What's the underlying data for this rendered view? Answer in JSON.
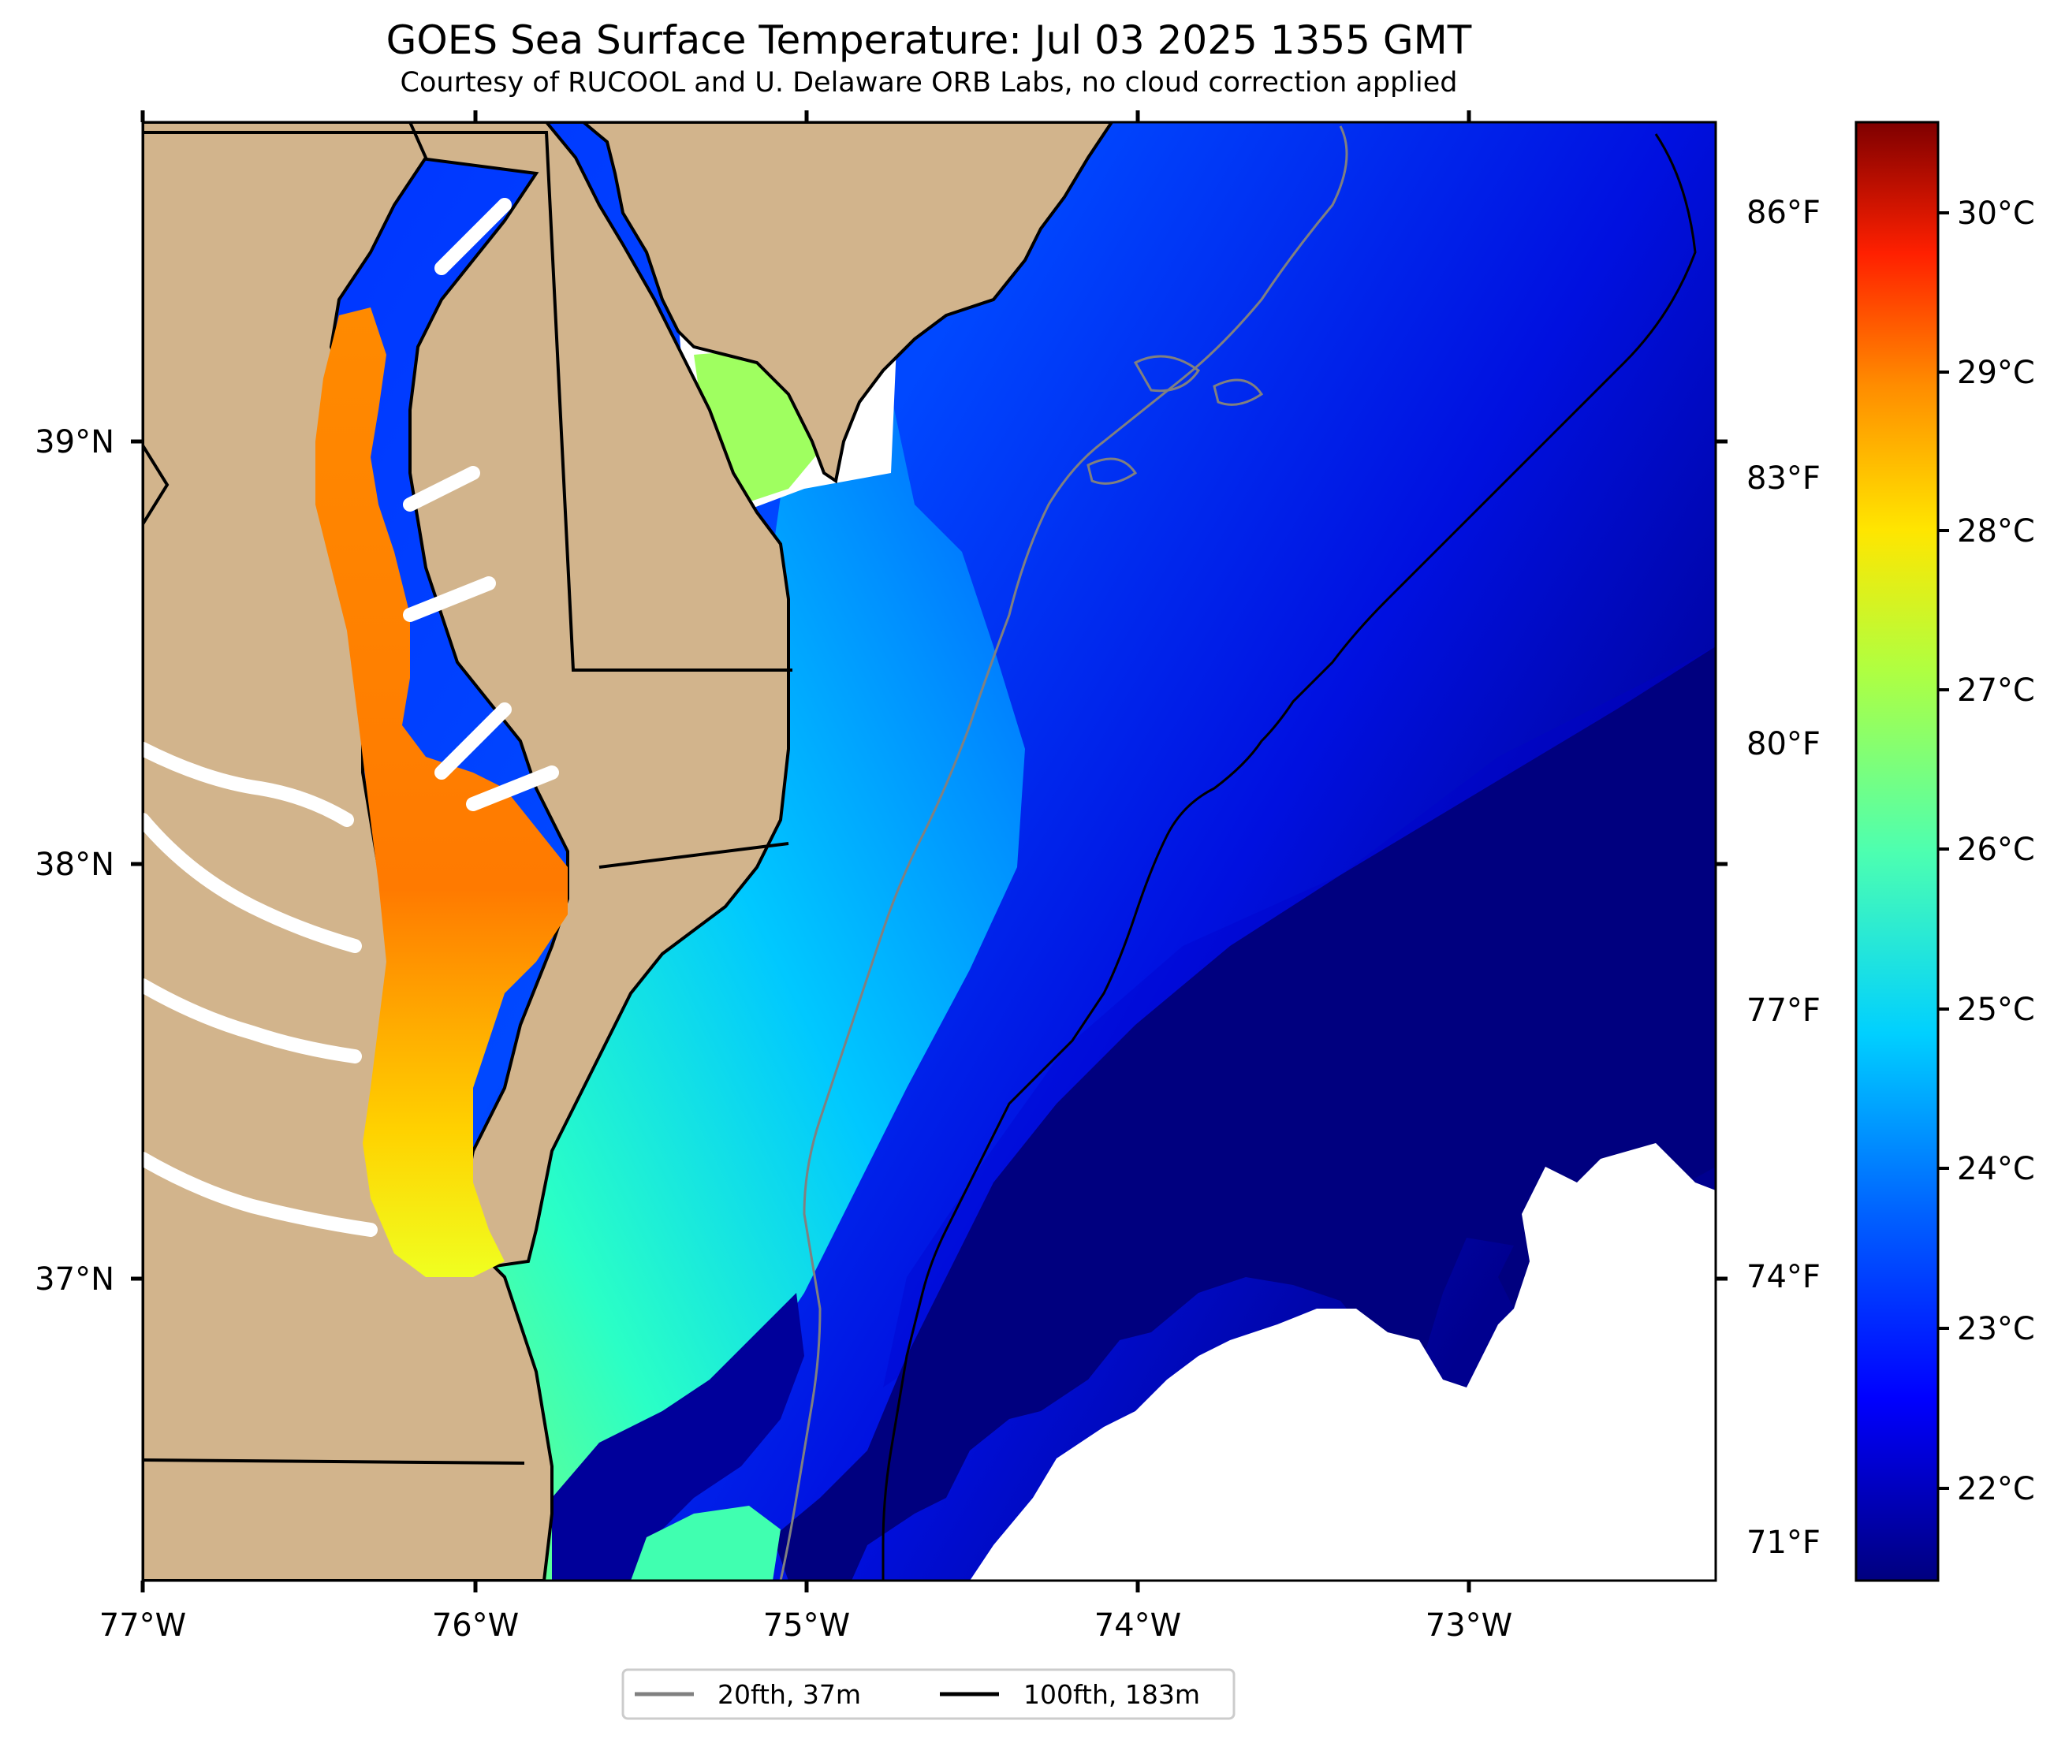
{
  "title": "GOES Sea Surface Temperature: Jul 03 2025 1355 GMT",
  "subtitle": "Courtesy of RUCOOL and U. Delaware ORB Labs, no cloud correction applied",
  "map": {
    "x_ticks": [
      "77°W",
      "76°W",
      "75°W",
      "74°W",
      "73°W"
    ],
    "y_ticks": [
      "39°N",
      "38°N",
      "37°N"
    ],
    "right_ticks": [
      "86°F",
      "83°F",
      "80°F",
      "77°F",
      "74°F",
      "71°F"
    ]
  },
  "colorbar": {
    "labels": [
      "30°C",
      "29°C",
      "28°C",
      "27°C",
      "26°C",
      "25°C",
      "24°C",
      "23°C",
      "22°C"
    ],
    "range_c": [
      21.5,
      30.5
    ],
    "colormap": [
      "#00007f",
      "#0000ff",
      "#007fff",
      "#00e5f7",
      "#7dff7a",
      "#ffea00",
      "#ff7000",
      "#ff0000",
      "#7f0000"
    ]
  },
  "legend": {
    "items": [
      {
        "label": "20fth, 37m",
        "color": "#808080"
      },
      {
        "label": "100fth, 183m",
        "color": "#000000"
      }
    ]
  },
  "colors": {
    "land": "#d2b48c",
    "deep_water": "#00007f",
    "no_data": "#ffffff"
  }
}
